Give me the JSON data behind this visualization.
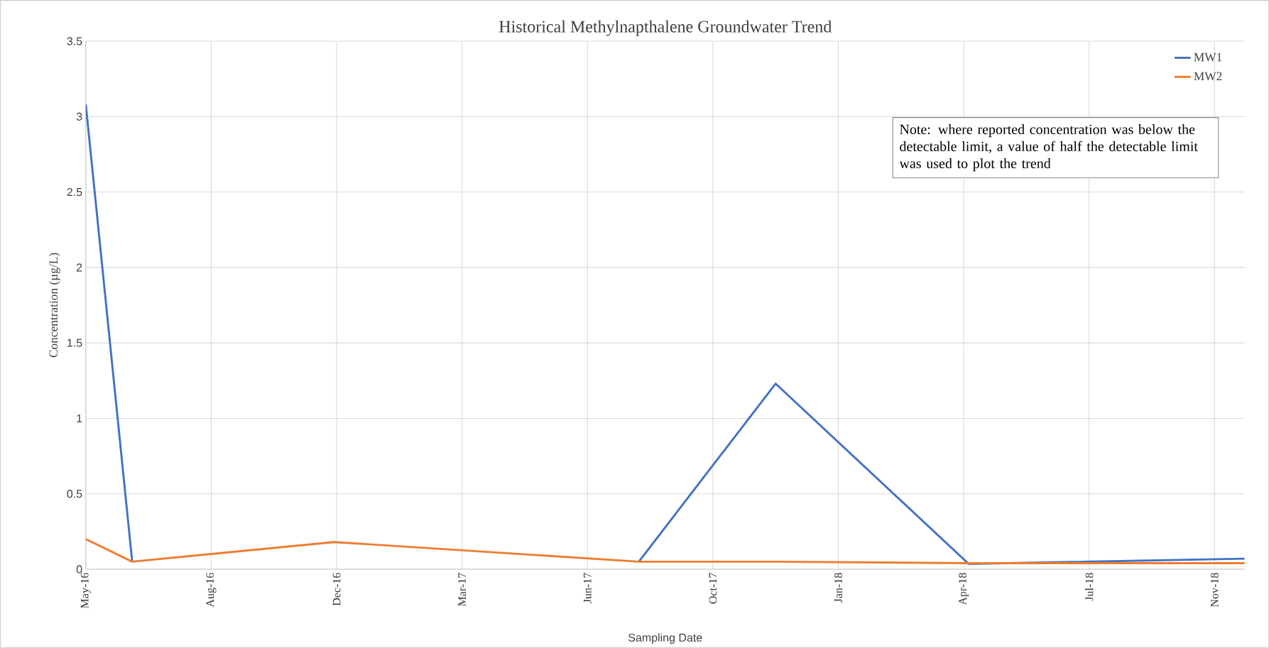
{
  "chart_data": {
    "type": "line",
    "title": "Historical Methylnapthalene Groundwater Trend",
    "xlabel": "Sampling Date",
    "ylabel": "Concentration (µg/L)",
    "x": [
      "2016-05-20",
      "2016-06-26",
      "2016-12-04",
      "2017-08-04",
      "2017-11-21",
      "2018-04-24",
      "2018-11-30"
    ],
    "series": [
      {
        "name": "MW1",
        "color": "#4472c4",
        "values": [
          3.08,
          0.05,
          null,
          0.05,
          1.23,
          0.035,
          0.07
        ]
      },
      {
        "name": "MW2",
        "color": "#ed7d31",
        "values": [
          0.2,
          0.05,
          0.18,
          0.05,
          0.05,
          0.04,
          0.04
        ]
      }
    ],
    "xlim": [
      "2016-05-20",
      "2018-11-30"
    ],
    "xticks": [
      {
        "value": "2016-05-20",
        "label": "May-16"
      },
      {
        "value": "2016-08-28",
        "label": "Aug-16"
      },
      {
        "value": "2016-12-06",
        "label": "Dec-16"
      },
      {
        "value": "2017-03-16",
        "label": "Mar-17"
      },
      {
        "value": "2017-06-24",
        "label": "Jun-17"
      },
      {
        "value": "2017-10-02",
        "label": "Oct-17"
      },
      {
        "value": "2018-01-10",
        "label": "Jan-18"
      },
      {
        "value": "2018-04-20",
        "label": "Apr-18"
      },
      {
        "value": "2018-07-29",
        "label": "Jul-18"
      },
      {
        "value": "2018-11-06",
        "label": "Nov-18"
      }
    ],
    "ylim": [
      0,
      3.5
    ],
    "yticks": [
      0,
      0.5,
      1,
      1.5,
      2,
      2.5,
      3,
      3.5
    ],
    "grid": true,
    "legend": "top right",
    "marker": "none",
    "line_style": "solid",
    "annotations": [
      "Note: where reported concentration was below the detectable limit, a value of half the detectable limit was used to plot the trend"
    ]
  }
}
